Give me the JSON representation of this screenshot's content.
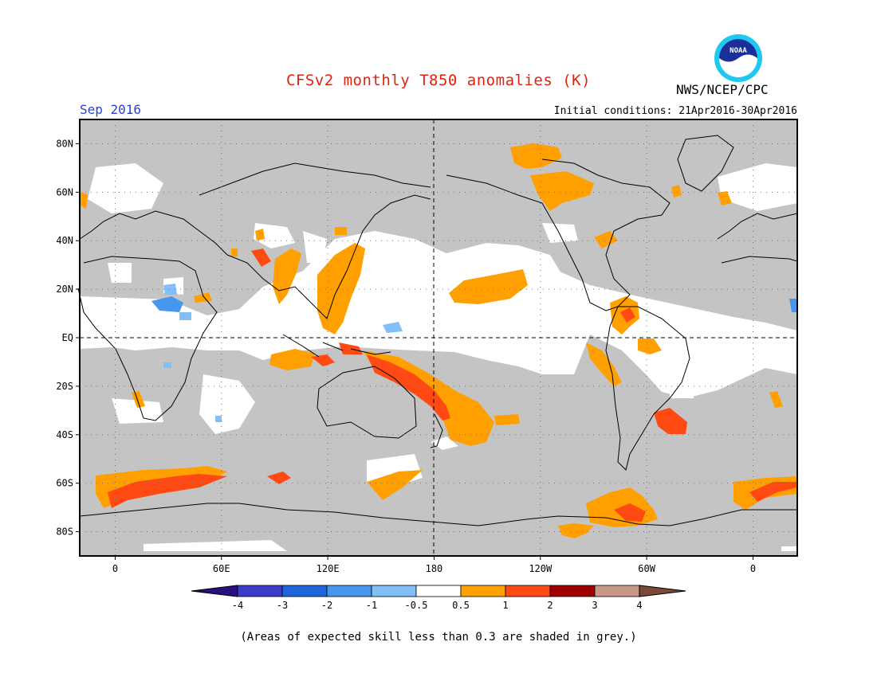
{
  "header": {
    "title": "CFSv2 monthly T850 anomalies (K)",
    "agency": "NWS/NCEP/CPC",
    "logo_text": "NOAA",
    "month": "Sep 2016",
    "initial_conditions": "Initial conditions: 21Apr2016-30Apr2016"
  },
  "axes": {
    "lat_labels": [
      {
        "lat": 80,
        "label": "80N"
      },
      {
        "lat": 60,
        "label": "60N"
      },
      {
        "lat": 40,
        "label": "40N"
      },
      {
        "lat": 20,
        "label": "20N"
      },
      {
        "lat": 0,
        "label": "EQ"
      },
      {
        "lat": -20,
        "label": "20S"
      },
      {
        "lat": -40,
        "label": "40S"
      },
      {
        "lat": -60,
        "label": "60S"
      },
      {
        "lat": -80,
        "label": "80S"
      }
    ],
    "lon_labels": [
      {
        "lon": 0,
        "label": "0"
      },
      {
        "lon": 60,
        "label": "60E"
      },
      {
        "lon": 120,
        "label": "120E"
      },
      {
        "lon": 180,
        "label": "180"
      },
      {
        "lon": 240,
        "label": "120W"
      },
      {
        "lon": 300,
        "label": "60W"
      },
      {
        "lon": 360,
        "label": "0"
      }
    ],
    "lon_range": [
      -20,
      385
    ],
    "lat_range": [
      -90,
      90
    ]
  },
  "legend": {
    "colors": [
      "#2a0f80",
      "#3c3cc8",
      "#1e64dc",
      "#4696ee",
      "#82bff8",
      "#ffffff",
      "#ffa000",
      "#ff4a14",
      "#a00000",
      "#c89888",
      "#7a4a36"
    ],
    "ticks": [
      "-4",
      "-3",
      "-2",
      "-1",
      "-0.5",
      "0.5",
      "1",
      "2",
      "3",
      "4"
    ]
  },
  "map_colors": {
    "grey": "#c4c4c4",
    "ocean_white": "#ffffff",
    "pos_05": "#ffa000",
    "pos_1": "#ff4a14",
    "neg_05": "#82bff8",
    "neg_1": "#4696ee"
  },
  "footnote": "(Areas of expected skill less than 0.3 are shaded in grey.)"
}
